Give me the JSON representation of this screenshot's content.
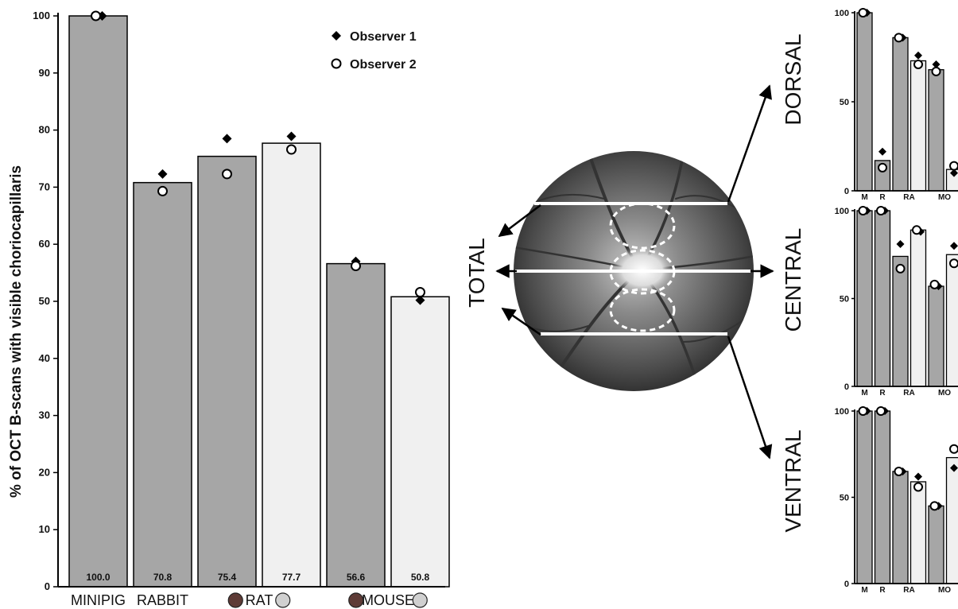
{
  "colors": {
    "bar_dark": "#a6a6a6",
    "bar_light": "#f0f0f0",
    "rat_swatch_dark": "#5e3b36",
    "rat_swatch_light": "#d0d0d0",
    "marker": "#000000"
  },
  "icons": {
    "observer1": "filled-diamond",
    "observer2": "open-circle",
    "fundus": "retina-fundus-image"
  },
  "chart_data": [
    {
      "type": "bar",
      "ylabel": "% of OCT B-scans with visible choriocapillaris",
      "ylim": [
        0,
        100
      ],
      "yticks": [
        0,
        10,
        20,
        30,
        40,
        50,
        60,
        70,
        80,
        90,
        100
      ],
      "legend": {
        "position": "top-right",
        "entries": [
          "Observer 1",
          "Observer 2"
        ]
      },
      "group_labels": [
        "MINIPIG",
        "RABBIT",
        "RAT",
        "MOUSE"
      ],
      "bars": [
        {
          "value": 100.0,
          "label": "100.0",
          "shade": "dark",
          "obs1": 100.0,
          "obs2": 100.0
        },
        {
          "value": 70.8,
          "label": "70.8",
          "shade": "dark",
          "obs1": 72.3,
          "obs2": 69.3
        },
        {
          "value": 75.4,
          "label": "75.4",
          "shade": "dark",
          "obs1": 78.5,
          "obs2": 72.3
        },
        {
          "value": 77.7,
          "label": "77.7",
          "shade": "light",
          "obs1": 78.9,
          "obs2": 76.6
        },
        {
          "value": 56.6,
          "label": "56.6",
          "shade": "dark",
          "obs1": 57.0,
          "obs2": 56.2
        },
        {
          "value": 50.8,
          "label": "50.8",
          "shade": "light",
          "obs1": 50.2,
          "obs2": 51.6
        }
      ]
    },
    {
      "type": "bar",
      "region": "DORSAL",
      "ylim": [
        0,
        100
      ],
      "yticks": [
        0,
        50,
        100
      ],
      "categories": [
        "M",
        "R",
        "RA",
        "MO"
      ],
      "bars": [
        {
          "value": 100,
          "shade": "dark",
          "obs1": 100,
          "obs2": 100
        },
        {
          "value": 17,
          "shade": "dark",
          "obs1": 22,
          "obs2": 13
        },
        {
          "value": 86,
          "shade": "dark",
          "obs1": 86,
          "obs2": 86
        },
        {
          "value": 73,
          "shade": "light",
          "obs1": 76,
          "obs2": 71
        },
        {
          "value": 68,
          "shade": "dark",
          "obs1": 71,
          "obs2": 67
        },
        {
          "value": 12,
          "shade": "light",
          "obs1": 10,
          "obs2": 14
        }
      ]
    },
    {
      "type": "bar",
      "region": "CENTRAL",
      "ylim": [
        0,
        100
      ],
      "yticks": [
        0,
        50,
        100
      ],
      "categories": [
        "M",
        "R",
        "RA",
        "MO"
      ],
      "bars": [
        {
          "value": 100,
          "shade": "dark",
          "obs1": 100,
          "obs2": 100
        },
        {
          "value": 100,
          "shade": "dark",
          "obs1": 100,
          "obs2": 100
        },
        {
          "value": 74,
          "shade": "dark",
          "obs1": 81,
          "obs2": 67
        },
        {
          "value": 89,
          "shade": "light",
          "obs1": 88,
          "obs2": 89
        },
        {
          "value": 57,
          "shade": "dark",
          "obs1": 57,
          "obs2": 58
        },
        {
          "value": 75,
          "shade": "light",
          "obs1": 80,
          "obs2": 70
        }
      ]
    },
    {
      "type": "bar",
      "region": "VENTRAL",
      "ylim": [
        0,
        100
      ],
      "yticks": [
        0,
        50,
        100
      ],
      "categories": [
        "M",
        "R",
        "RA",
        "MO"
      ],
      "bars": [
        {
          "value": 100,
          "shade": "dark",
          "obs1": 100,
          "obs2": 100
        },
        {
          "value": 100,
          "shade": "dark",
          "obs1": 100,
          "obs2": 100
        },
        {
          "value": 65,
          "shade": "dark",
          "obs1": 65,
          "obs2": 65
        },
        {
          "value": 59,
          "shade": "light",
          "obs1": 62,
          "obs2": 56
        },
        {
          "value": 45,
          "shade": "dark",
          "obs1": 45,
          "obs2": 45
        },
        {
          "value": 73,
          "shade": "light",
          "obs1": 67,
          "obs2": 78
        }
      ]
    }
  ],
  "fundus": {
    "labels": {
      "total": "TOTAL"
    }
  }
}
